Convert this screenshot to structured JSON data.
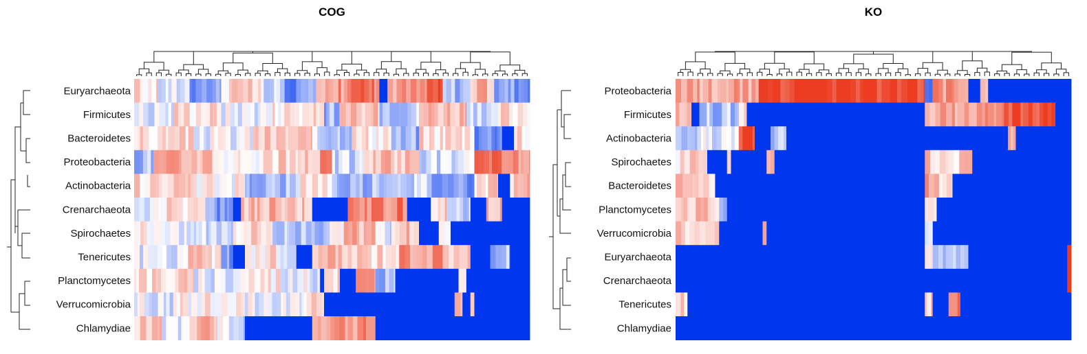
{
  "colors": {
    "low": "#0037ee",
    "mid": "#ffffff",
    "high": "#ec3d22"
  },
  "chart_data": [
    {
      "type": "heatmap",
      "title": "COG",
      "rows": [
        "Euryarchaeota",
        "Firmicutes",
        "Bacteroidetes",
        "Proteobacteria",
        "Actinobacteria",
        "Crenarchaeota",
        "Spirochaetes",
        "Tenericutes",
        "Planctomycetes",
        "Verrucomicrobia",
        "Chlamydiae"
      ],
      "column_dendrogram": true,
      "row_dendrogram": true,
      "row_regions": [
        [
          [
            0.0,
            0.06,
            0.15
          ],
          [
            0.06,
            0.14,
            -0.12
          ],
          [
            0.14,
            0.22,
            -0.45
          ],
          [
            0.22,
            0.32,
            0.18
          ],
          [
            0.32,
            0.38,
            -0.25
          ],
          [
            0.38,
            0.46,
            -0.55
          ],
          [
            0.46,
            0.53,
            0.55
          ],
          [
            0.53,
            0.62,
            0.72
          ],
          [
            0.62,
            0.64,
            -1
          ],
          [
            0.64,
            0.74,
            0.5
          ],
          [
            0.74,
            0.78,
            0.85
          ],
          [
            0.78,
            0.85,
            -0.3
          ],
          [
            0.85,
            0.91,
            0.35
          ],
          [
            0.91,
            1.0,
            -0.45
          ]
        ],
        [
          [
            0.0,
            0.1,
            -0.1
          ],
          [
            0.1,
            0.22,
            0.2
          ],
          [
            0.22,
            0.35,
            -0.05
          ],
          [
            0.35,
            0.48,
            0.15
          ],
          [
            0.48,
            0.52,
            -0.35
          ],
          [
            0.52,
            0.62,
            0.25
          ],
          [
            0.62,
            0.72,
            -0.2
          ],
          [
            0.72,
            0.84,
            0.4
          ],
          [
            0.84,
            0.92,
            -0.3
          ],
          [
            0.92,
            1.0,
            0.2
          ]
        ],
        [
          [
            0.0,
            0.15,
            0.15
          ],
          [
            0.15,
            0.3,
            -0.05
          ],
          [
            0.3,
            0.45,
            0.25
          ],
          [
            0.45,
            0.55,
            -0.2
          ],
          [
            0.55,
            0.65,
            0.15
          ],
          [
            0.65,
            0.72,
            -0.4
          ],
          [
            0.72,
            0.86,
            0.2
          ],
          [
            0.86,
            0.93,
            -0.5
          ],
          [
            0.93,
            0.96,
            -1
          ],
          [
            0.96,
            1.0,
            0.2
          ]
        ],
        [
          [
            0.0,
            0.05,
            -0.3
          ],
          [
            0.05,
            0.2,
            0.4
          ],
          [
            0.2,
            0.35,
            0.1
          ],
          [
            0.35,
            0.47,
            0.2
          ],
          [
            0.47,
            0.5,
            0.9
          ],
          [
            0.5,
            0.58,
            -0.2
          ],
          [
            0.58,
            0.72,
            0.3
          ],
          [
            0.72,
            0.86,
            -0.15
          ],
          [
            0.86,
            0.93,
            0.65
          ],
          [
            0.93,
            1.0,
            0.5
          ]
        ],
        [
          [
            0.0,
            0.15,
            0.15
          ],
          [
            0.15,
            0.28,
            0.05
          ],
          [
            0.28,
            0.42,
            -0.3
          ],
          [
            0.42,
            0.5,
            0.2
          ],
          [
            0.5,
            0.62,
            -0.35
          ],
          [
            0.62,
            0.74,
            -0.15
          ],
          [
            0.74,
            0.86,
            -0.45
          ],
          [
            0.86,
            0.92,
            0.2
          ],
          [
            0.92,
            0.95,
            -1
          ],
          [
            0.95,
            1.0,
            0.3
          ]
        ],
        [
          [
            0.0,
            0.07,
            -0.1
          ],
          [
            0.07,
            0.18,
            0.15
          ],
          [
            0.18,
            0.25,
            -0.5
          ],
          [
            0.25,
            0.27,
            -1
          ],
          [
            0.27,
            0.45,
            0.35
          ],
          [
            0.45,
            0.54,
            -1
          ],
          [
            0.54,
            0.69,
            0.65
          ],
          [
            0.69,
            0.75,
            -1
          ],
          [
            0.75,
            0.79,
            0.2
          ],
          [
            0.79,
            0.85,
            -0.3
          ],
          [
            0.85,
            0.89,
            -1
          ],
          [
            0.89,
            0.93,
            0.3
          ],
          [
            0.93,
            1.0,
            -1
          ]
        ],
        [
          [
            0.0,
            0.1,
            0.1
          ],
          [
            0.1,
            0.25,
            -0.15
          ],
          [
            0.25,
            0.35,
            0.2
          ],
          [
            0.35,
            0.48,
            -0.25
          ],
          [
            0.48,
            0.53,
            -0.1
          ],
          [
            0.53,
            0.61,
            0.4
          ],
          [
            0.61,
            0.65,
            -0.2
          ],
          [
            0.65,
            0.72,
            0.3
          ],
          [
            0.72,
            0.77,
            -1
          ],
          [
            0.77,
            0.8,
            0.2
          ],
          [
            0.8,
            1.0,
            -1
          ]
        ],
        [
          [
            0.0,
            0.13,
            -0.1
          ],
          [
            0.13,
            0.22,
            0.2
          ],
          [
            0.22,
            0.25,
            -0.5
          ],
          [
            0.25,
            0.28,
            -1
          ],
          [
            0.28,
            0.36,
            0.15
          ],
          [
            0.36,
            0.41,
            -0.2
          ],
          [
            0.41,
            0.45,
            -1
          ],
          [
            0.45,
            0.54,
            0.3
          ],
          [
            0.54,
            0.67,
            0.25
          ],
          [
            0.67,
            0.78,
            0.55
          ],
          [
            0.78,
            0.85,
            0.35
          ],
          [
            0.85,
            0.9,
            -1
          ],
          [
            0.9,
            0.95,
            -0.3
          ],
          [
            0.95,
            1.0,
            -1
          ]
        ],
        [
          [
            0.0,
            0.15,
            0.2
          ],
          [
            0.15,
            0.27,
            -0.1
          ],
          [
            0.27,
            0.37,
            0.15
          ],
          [
            0.37,
            0.47,
            -0.05
          ],
          [
            0.47,
            0.48,
            -1
          ],
          [
            0.48,
            0.52,
            0.25
          ],
          [
            0.52,
            0.56,
            -1
          ],
          [
            0.56,
            0.61,
            0.5
          ],
          [
            0.61,
            0.66,
            -0.3
          ],
          [
            0.66,
            0.82,
            -1
          ],
          [
            0.82,
            0.84,
            0.3
          ],
          [
            0.84,
            1.0,
            -1
          ]
        ],
        [
          [
            0.0,
            0.1,
            -0.1
          ],
          [
            0.1,
            0.28,
            0.05
          ],
          [
            0.28,
            0.43,
            -0.05
          ],
          [
            0.43,
            0.48,
            0.15
          ],
          [
            0.48,
            0.81,
            -1
          ],
          [
            0.81,
            0.83,
            0.2
          ],
          [
            0.83,
            0.85,
            -1
          ],
          [
            0.85,
            0.86,
            0.3
          ],
          [
            0.86,
            1.0,
            -1
          ]
        ],
        [
          [
            0.0,
            0.07,
            0.3
          ],
          [
            0.07,
            0.14,
            -0.2
          ],
          [
            0.14,
            0.21,
            0.4
          ],
          [
            0.21,
            0.24,
            0.1
          ],
          [
            0.24,
            0.28,
            -0.25
          ],
          [
            0.28,
            0.45,
            -1
          ],
          [
            0.45,
            0.61,
            0.55
          ],
          [
            0.61,
            1.0,
            -1
          ]
        ]
      ]
    },
    {
      "type": "heatmap",
      "title": "KO",
      "rows": [
        "Proteobacteria",
        "Firmicutes",
        "Actinobacteria",
        "Spirochaetes",
        "Bacteroidetes",
        "Planctomycetes",
        "Verrucomicrobia",
        "Euryarchaeota",
        "Crenarchaeota",
        "Tenericutes",
        "Chlamydiae"
      ],
      "column_dendrogram": true,
      "row_dendrogram": true,
      "row_regions": [
        [
          [
            0.0,
            0.21,
            0.45
          ],
          [
            0.21,
            0.63,
            1
          ],
          [
            0.63,
            0.65,
            -0.5
          ],
          [
            0.65,
            0.74,
            0.5
          ],
          [
            0.74,
            0.77,
            -1
          ],
          [
            0.77,
            0.79,
            0.3
          ],
          [
            0.79,
            0.81,
            -1
          ],
          [
            0.81,
            1.0,
            -1
          ]
        ],
        [
          [
            0.0,
            0.04,
            0.3
          ],
          [
            0.04,
            0.06,
            -1
          ],
          [
            0.06,
            0.16,
            -0.3
          ],
          [
            0.16,
            0.18,
            0.1
          ],
          [
            0.18,
            0.63,
            -1
          ],
          [
            0.63,
            0.83,
            0.45
          ],
          [
            0.83,
            0.96,
            0.95
          ],
          [
            0.96,
            1.0,
            -1
          ]
        ],
        [
          [
            0.0,
            0.07,
            -0.2
          ],
          [
            0.07,
            0.16,
            -0.1
          ],
          [
            0.16,
            0.2,
            0.95
          ],
          [
            0.2,
            0.24,
            -1
          ],
          [
            0.24,
            0.28,
            -0.3
          ],
          [
            0.28,
            0.84,
            -1
          ],
          [
            0.84,
            0.86,
            0.4
          ],
          [
            0.86,
            1.0,
            -1
          ]
        ],
        [
          [
            0.0,
            0.08,
            0.2
          ],
          [
            0.08,
            0.13,
            -1
          ],
          [
            0.13,
            0.14,
            0.3
          ],
          [
            0.14,
            0.23,
            -1
          ],
          [
            0.23,
            0.25,
            0.2
          ],
          [
            0.25,
            0.63,
            -1
          ],
          [
            0.63,
            0.75,
            0.25
          ],
          [
            0.75,
            1.0,
            -1
          ]
        ],
        [
          [
            0.0,
            0.1,
            0.25
          ],
          [
            0.1,
            0.63,
            -1
          ],
          [
            0.63,
            0.64,
            0.8
          ],
          [
            0.64,
            0.7,
            0.3
          ],
          [
            0.7,
            1.0,
            -1
          ]
        ],
        [
          [
            0.0,
            0.11,
            0.25
          ],
          [
            0.11,
            0.13,
            -0.3
          ],
          [
            0.13,
            0.63,
            -1
          ],
          [
            0.63,
            0.66,
            0.2
          ],
          [
            0.66,
            1.0,
            -1
          ]
        ],
        [
          [
            0.0,
            0.11,
            0.2
          ],
          [
            0.11,
            0.22,
            -1
          ],
          [
            0.22,
            0.23,
            0.4
          ],
          [
            0.23,
            0.63,
            -1
          ],
          [
            0.63,
            0.65,
            0.1
          ],
          [
            0.65,
            1.0,
            -1
          ]
        ],
        [
          [
            0.0,
            0.63,
            -1
          ],
          [
            0.63,
            0.65,
            0.2
          ],
          [
            0.65,
            0.74,
            -0.2
          ],
          [
            0.74,
            0.99,
            -1
          ],
          [
            0.99,
            1.0,
            0.9
          ]
        ],
        [
          [
            0.0,
            0.99,
            -1
          ],
          [
            0.99,
            1.0,
            0.8
          ]
        ],
        [
          [
            0.0,
            0.03,
            0.2
          ],
          [
            0.03,
            0.63,
            -1
          ],
          [
            0.63,
            0.65,
            0.3
          ],
          [
            0.65,
            0.69,
            -1
          ],
          [
            0.69,
            0.72,
            0.6
          ],
          [
            0.72,
            1.0,
            -1
          ]
        ],
        [
          [
            0.0,
            1.0,
            -1
          ]
        ]
      ]
    }
  ]
}
